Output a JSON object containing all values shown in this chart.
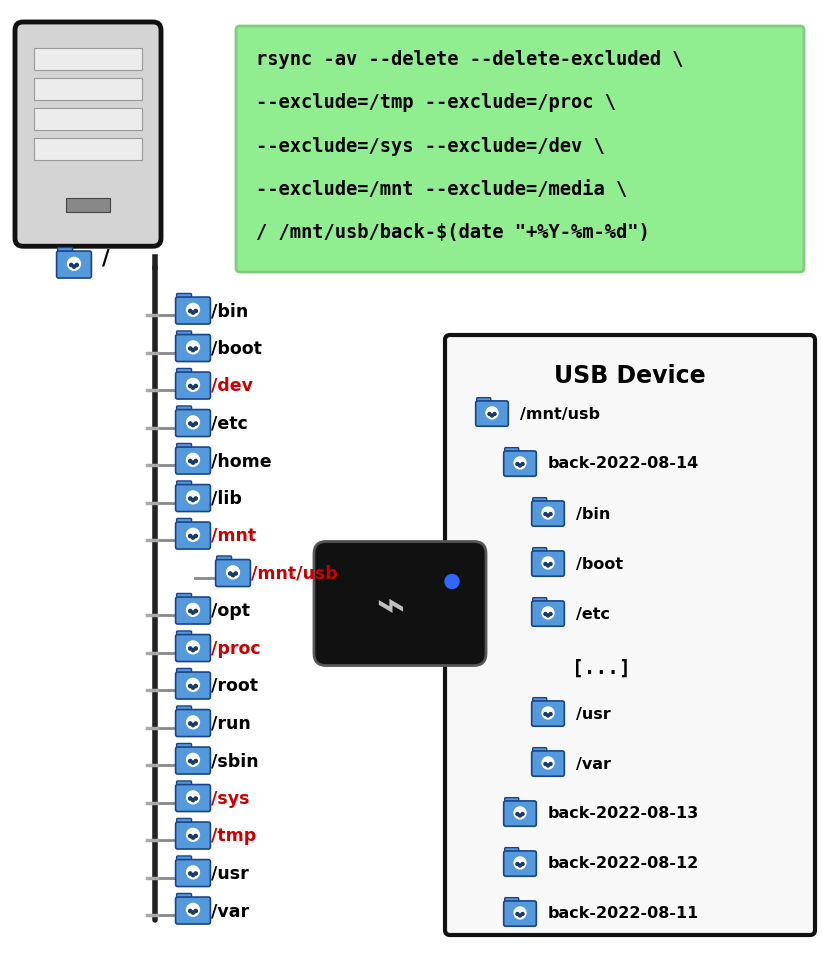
{
  "bg_color": "#ffffff",
  "cmd_box_color": "#90EE90",
  "cmd_lines": [
    "rsync -av --delete --delete-excluded \\",
    "--exclude=/tmp --exclude=/proc \\",
    "--exclude=/sys --exclude=/dev \\",
    "--exclude=/mnt --exclude=/media \\",
    "/ /mnt/usb/back-$(date \"+%Y-%m-%d\")"
  ],
  "left_tree_items": [
    {
      "label": "/bin",
      "excluded": false,
      "sub": false
    },
    {
      "label": "/boot",
      "excluded": false,
      "sub": false
    },
    {
      "label": "/dev",
      "excluded": true,
      "sub": false
    },
    {
      "label": "/etc",
      "excluded": false,
      "sub": false
    },
    {
      "label": "/home",
      "excluded": false,
      "sub": false
    },
    {
      "label": "/lib",
      "excluded": false,
      "sub": false
    },
    {
      "label": "/mnt",
      "excluded": true,
      "sub": false
    },
    {
      "label": "/mnt/usb",
      "excluded": true,
      "sub": true
    },
    {
      "label": "/opt",
      "excluded": false,
      "sub": false
    },
    {
      "label": "/proc",
      "excluded": true,
      "sub": false
    },
    {
      "label": "/root",
      "excluded": false,
      "sub": false
    },
    {
      "label": "/run",
      "excluded": false,
      "sub": false
    },
    {
      "label": "/sbin",
      "excluded": false,
      "sub": false
    },
    {
      "label": "/sys",
      "excluded": true,
      "sub": false
    },
    {
      "label": "/tmp",
      "excluded": true,
      "sub": false
    },
    {
      "label": "/usr",
      "excluded": false,
      "sub": false
    },
    {
      "label": "/var",
      "excluded": false,
      "sub": false
    }
  ],
  "usb_tree_items": [
    {
      "label": "/mnt/usb",
      "level": 0
    },
    {
      "label": "back-2022-08-14",
      "level": 1
    },
    {
      "label": "/bin",
      "level": 2
    },
    {
      "label": "/boot",
      "level": 2
    },
    {
      "label": "/etc",
      "level": 2
    },
    {
      "label": "[...]",
      "level": 2
    },
    {
      "label": "/usr",
      "level": 2
    },
    {
      "label": "/var",
      "level": 2
    },
    {
      "label": "back-2022-08-13",
      "level": 1
    },
    {
      "label": "back-2022-08-12",
      "level": 1
    },
    {
      "label": "back-2022-08-11",
      "level": 1
    }
  ],
  "usb_title": "USB Device",
  "folder_color": "#5599dd",
  "folder_edge": "#1a4488",
  "excluded_color": "#cc0000",
  "normal_color": "#000000",
  "line_color": "#555555",
  "trunk_color": "#222222"
}
